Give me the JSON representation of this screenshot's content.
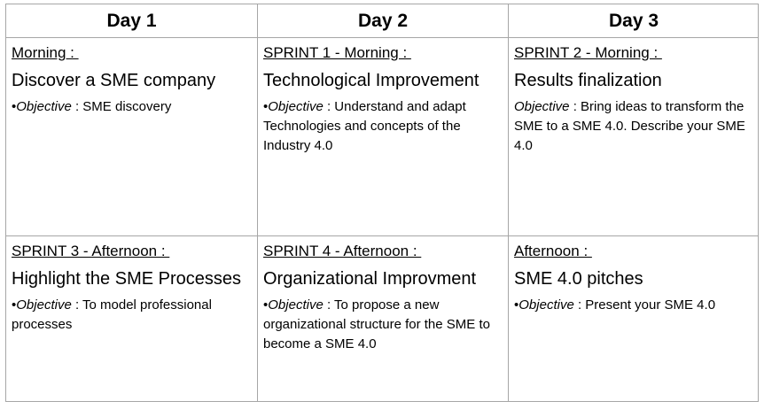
{
  "headers": [
    "Day 1",
    "Day 2",
    "Day 3"
  ],
  "rows": [
    [
      {
        "session": "Morning : ",
        "topic": "Discover a SME company",
        "bullet": "•",
        "objective_label": "Objective",
        "objective_text": " : SME discovery"
      },
      {
        "session": "SPRINT 1 - Morning : ",
        "topic": "Technological Improvement",
        "bullet": "•",
        "objective_label": "Objective",
        "objective_text": " : Understand and adapt Technologies and concepts of the Industry 4.0"
      },
      {
        "session": "SPRINT 2 - Morning : ",
        "topic": "Results finalization",
        "bullet": "",
        "objective_label": "Objective",
        "objective_text": " : Bring ideas to transform the SME to a SME 4.0. Describe your SME 4.0"
      }
    ],
    [
      {
        "session": "SPRINT 3 - Afternoon : ",
        "topic": "Highlight the SME Processes",
        "bullet": "•",
        "objective_label": "Objective",
        "objective_text": " : To model professional processes"
      },
      {
        "session": "SPRINT 4 - Afternoon : ",
        "topic": "Organizational Improvment",
        "bullet": "•",
        "objective_label": "Objective",
        "objective_text": " : To propose a new organizational structure for the SME to become a SME 4.0"
      },
      {
        "session": "Afternoon : ",
        "topic": "SME 4.0 pitches",
        "bullet": "•",
        "objective_label": "Objective",
        "objective_text": " : Present your SME 4.0"
      }
    ]
  ]
}
